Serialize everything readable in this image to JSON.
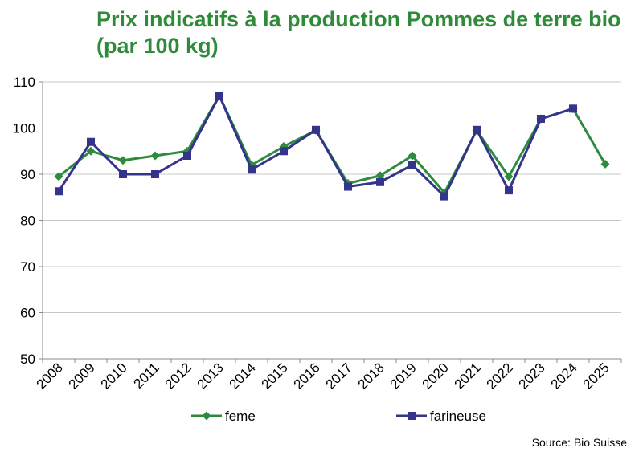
{
  "chart_data": {
    "type": "line",
    "title": "Prix indicatifs à la production Pommes de terre bio (par 100 kg)",
    "xlabel": "",
    "ylabel": "",
    "categories": [
      "2008",
      "2009",
      "2010",
      "2011",
      "2012",
      "2013",
      "2014",
      "2015",
      "2016",
      "2017",
      "2018",
      "2019",
      "2020",
      "2021",
      "2022",
      "2023",
      "2024",
      "2025"
    ],
    "ylim": [
      50,
      110
    ],
    "yticks": [
      50,
      60,
      70,
      80,
      90,
      100,
      110
    ],
    "grid": true,
    "legend_position": "bottom",
    "series": [
      {
        "name": "feme",
        "color": "#2e8b3e",
        "marker": "diamond",
        "values": [
          89.5,
          95,
          93,
          94,
          95,
          107,
          92,
          96,
          99.5,
          88,
          89.7,
          94,
          86,
          99.5,
          89.5,
          102,
          104.2,
          92.2
        ]
      },
      {
        "name": "farineuse",
        "color": "#34348a",
        "marker": "square",
        "values": [
          86.3,
          97,
          90,
          90,
          94,
          107,
          91,
          95,
          99.6,
          87.3,
          88.3,
          92,
          85.2,
          99.6,
          86.5,
          102,
          104.2,
          null
        ]
      }
    ]
  },
  "source": "Source: Bio Suisse"
}
